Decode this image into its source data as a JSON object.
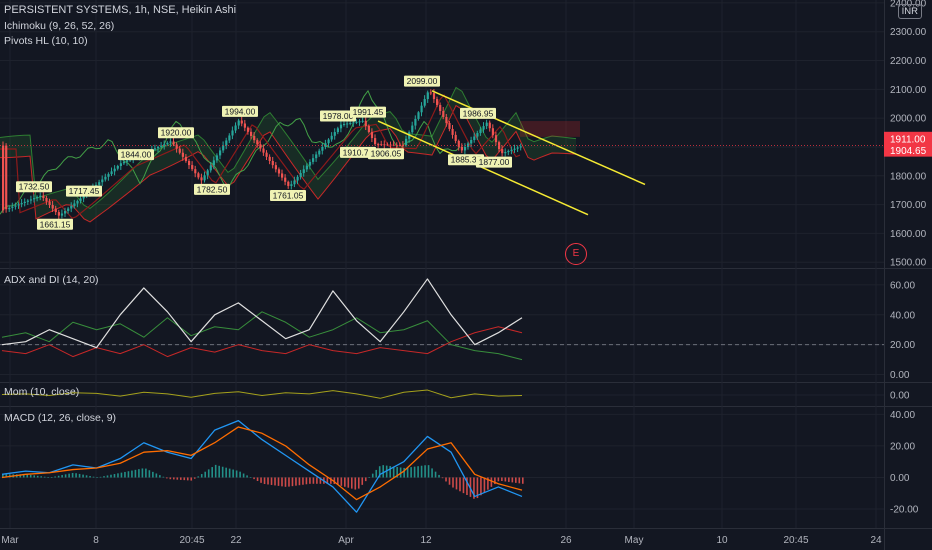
{
  "symbol": {
    "title": "PERSISTENT SYSTEMS, 1h, NSE, Heikin Ashi",
    "indicators": [
      "Ichimoku (9, 26, 52, 26)",
      "Pivots HL (10, 10)"
    ]
  },
  "currency_badge": "INR",
  "earnings_badge": "E",
  "panes": {
    "adx_title": "ADX and DI (14, 20)",
    "mom_title": "Mom (10, close)",
    "macd_title": "MACD (12, 26, close, 9)"
  },
  "colors": {
    "background": "#131722",
    "up": "#26a69a",
    "down": "#ef5350",
    "channel": "#f5ea33",
    "price_label": "#f23645",
    "cloud_green": "#2e7d32",
    "cloud_red": "#c62828",
    "tenkan": "#1e88e5",
    "kijun": "#8d1b1b",
    "lagging": "#43a047",
    "adx": "#e0e0e0",
    "di_plus": "#388e3c",
    "di_minus": "#c62828",
    "mom": "#a5a11c",
    "macd": "#2196f3",
    "signal": "#ff6d00"
  },
  "chart_data": [
    {
      "type": "candlestick",
      "pane": "price",
      "title": "PERSISTENT SYSTEMS, 1h, NSE, Heikin Ashi",
      "y_axis_ticks": [
        1500.0,
        1600.0,
        1700.0,
        1800.0,
        1900.0,
        2000.0,
        2100.0,
        2200.0,
        2300.0,
        2400.0
      ],
      "ylim": [
        1480,
        2410
      ],
      "x_axis_ticks": [
        "Mar",
        "8",
        "20:45",
        "22",
        "Apr",
        "12",
        "26",
        "May",
        "10",
        "20:45",
        "24"
      ],
      "price_labels": [
        {
          "text": "1911.00",
          "value": 1911
        },
        {
          "text": "1904.65",
          "value": 1904.65
        }
      ],
      "pivot_labels": [
        {
          "text": "1732.50",
          "value": 1732.5
        },
        {
          "text": "1661.15",
          "value": 1661.15
        },
        {
          "text": "1717.45",
          "value": 1717.45
        },
        {
          "text": "1844.00",
          "value": 1844
        },
        {
          "text": "1920.00",
          "value": 1920
        },
        {
          "text": "1782.50",
          "value": 1782.5
        },
        {
          "text": "1994.00",
          "value": 1994
        },
        {
          "text": "1761.05",
          "value": 1761.05
        },
        {
          "text": "1978.00",
          "value": 1978
        },
        {
          "text": "1991.45",
          "value": 1991.45
        },
        {
          "text": "1910.70",
          "value": 1910.7
        },
        {
          "text": "1906.05",
          "value": 1906.05
        },
        {
          "text": "2099.00",
          "value": 2099
        },
        {
          "text": "1986.95",
          "value": 1986.95
        },
        {
          "text": "1885.35",
          "value": 1885.35
        },
        {
          "text": "1877.00",
          "value": 1877
        }
      ],
      "trend_channel": {
        "upper_start": 2095,
        "upper_end": 1770,
        "lower_start": 1990,
        "lower_end": 1665
      }
    },
    {
      "type": "line",
      "pane": "adx",
      "title": "ADX and DI (14, 20)",
      "y_axis_ticks": [
        0.0,
        20.0,
        40.0,
        60.0
      ],
      "ylim": [
        -5,
        70
      ],
      "threshold": 20,
      "series": [
        {
          "name": "ADX",
          "values": [
            20,
            22,
            30,
            24,
            18,
            40,
            58,
            42,
            22,
            40,
            48,
            36,
            24,
            30,
            56,
            36,
            22,
            42,
            64,
            40,
            20,
            28,
            38
          ]
        },
        {
          "name": "+DI",
          "values": [
            25,
            28,
            22,
            35,
            30,
            34,
            25,
            38,
            26,
            32,
            30,
            42,
            35,
            25,
            30,
            38,
            28,
            30,
            36,
            20,
            16,
            14,
            10
          ]
        },
        {
          "name": "-DI",
          "values": [
            16,
            14,
            20,
            12,
            18,
            14,
            20,
            12,
            18,
            15,
            20,
            16,
            14,
            20,
            16,
            14,
            18,
            16,
            14,
            22,
            28,
            32,
            28
          ]
        }
      ]
    },
    {
      "type": "line",
      "pane": "momentum",
      "title": "Mom (10, close)",
      "y_axis_ticks": [
        0.0
      ],
      "ylim": [
        -100,
        100
      ],
      "series": [
        {
          "name": "Mom",
          "values": [
            5,
            10,
            -5,
            20,
            15,
            -10,
            25,
            10,
            -20,
            15,
            30,
            -5,
            20,
            10,
            40,
            10,
            -30,
            25,
            45,
            -25,
            10,
            -10,
            -5
          ]
        }
      ]
    },
    {
      "type": "line",
      "pane": "macd",
      "title": "MACD (12, 26, close, 9)",
      "y_axis_ticks": [
        -20.0,
        0.0,
        20.0,
        40.0
      ],
      "ylim": [
        -32,
        44
      ],
      "series": [
        {
          "name": "MACD",
          "values": [
            2,
            4,
            3,
            8,
            6,
            12,
            22,
            16,
            12,
            30,
            36,
            24,
            14,
            4,
            -6,
            -22,
            2,
            10,
            26,
            16,
            -12,
            -6,
            -12
          ]
        },
        {
          "name": "Signal",
          "values": [
            0,
            2,
            3,
            5,
            6,
            9,
            16,
            17,
            14,
            22,
            32,
            28,
            20,
            8,
            -2,
            -14,
            -6,
            4,
            18,
            22,
            2,
            -4,
            -8
          ]
        },
        {
          "name": "Histogram",
          "values": [
            2,
            2,
            0,
            3,
            0,
            3,
            6,
            -1,
            -2,
            8,
            4,
            -4,
            -6,
            -4,
            -4,
            -8,
            8,
            6,
            8,
            -6,
            -14,
            -2,
            -4
          ]
        }
      ]
    }
  ]
}
